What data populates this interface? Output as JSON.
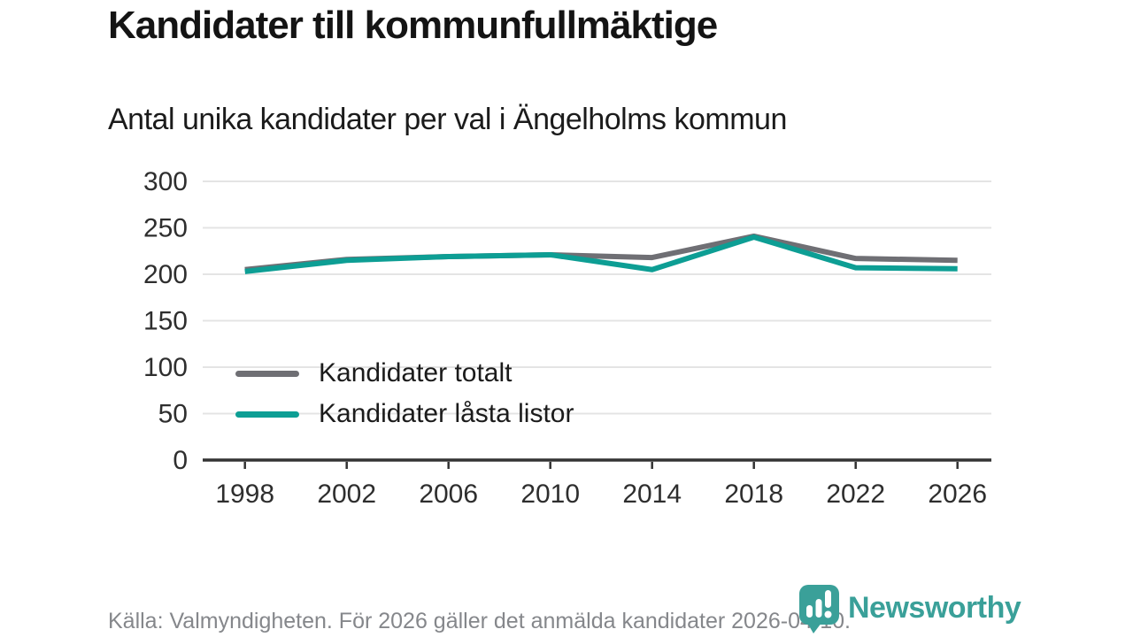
{
  "page": {
    "title": "Kandidater till kommunfullmäktige",
    "subtitle": "Antal unika kandidater per val i Ängelholms kommun",
    "source": "Källa: Valmyndigheten. För 2026 gäller det anmälda kandidater 2026-04-10.",
    "logo_text": "Newsworthy"
  },
  "colors": {
    "total_line": "#6f6f74",
    "locked_line": "#0d9e94",
    "grid": "#e4e4e4",
    "axis": "#333333",
    "axis_label": "#2e2e2e",
    "title_text": "#141414",
    "footer_text": "#85878b",
    "logo": "#3aa099"
  },
  "chart_data": {
    "type": "line",
    "title": "Kandidater till kommunfullmäktige",
    "subtitle": "Antal unika kandidater per val i Ängelholms kommun",
    "x": [
      1998,
      2002,
      2006,
      2010,
      2014,
      2018,
      2022,
      2026
    ],
    "series": [
      {
        "name": "Kandidater totalt",
        "color_key": "total_line",
        "values": [
          205,
          216,
          219,
          221,
          218,
          241,
          217,
          215
        ]
      },
      {
        "name": "Kandidater låsta listor",
        "color_key": "locked_line",
        "values": [
          203,
          215,
          219,
          221,
          205,
          240,
          207,
          206
        ]
      }
    ],
    "xlabel": "",
    "ylabel": "",
    "ylim": [
      0,
      300
    ],
    "yticks": [
      0,
      50,
      100,
      150,
      200,
      250,
      300
    ],
    "grid": true,
    "legend_position": "inside-left"
  }
}
